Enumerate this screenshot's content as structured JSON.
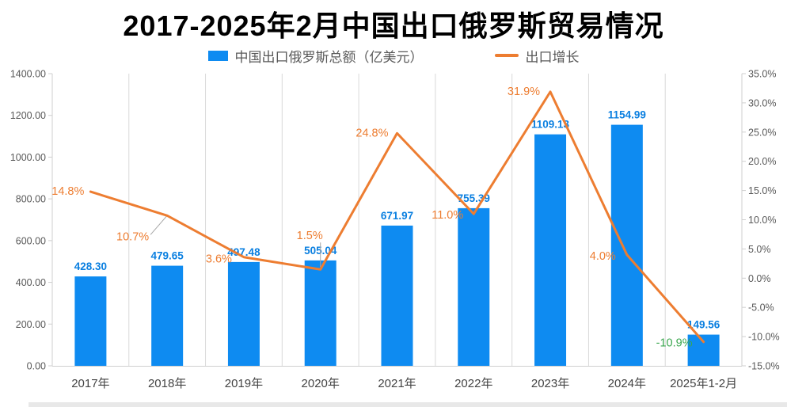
{
  "title": "2017-2025年2月中国出口俄罗斯贸易情况",
  "legend": {
    "bars_label": "中国出口俄罗斯总额（亿美元）",
    "line_label": "出口增长"
  },
  "colors": {
    "bar": "#0e8bf1",
    "bar_label": "#0a7fe0",
    "line": "#ed7d31",
    "line_label": "#ed7d31",
    "negative_label": "#3ba74f",
    "axis_text": "#595959",
    "x_axis_text": "#444444",
    "grid": "#d9d9d9",
    "axis_line": "#cfcfcf",
    "leader": "#a6a6a6"
  },
  "chart_data": {
    "type": "bar+line combo",
    "title": "2017-2025年2月中国出口俄罗斯贸易情况",
    "categories": [
      "2017年",
      "2018年",
      "2019年",
      "2020年",
      "2021年",
      "2022年",
      "2023年",
      "2024年",
      "2025年1-2月"
    ],
    "series": [
      {
        "name": "中国出口俄罗斯总额（亿美元）",
        "type": "bar",
        "axis": "left",
        "values": [
          428.3,
          479.65,
          497.48,
          505.04,
          671.97,
          755.39,
          1109.13,
          1154.99,
          149.56
        ],
        "labels": [
          "428.30",
          "479.65",
          "497.48",
          "505.04",
          "671.97",
          "755.39",
          "1109.13",
          "1154.99",
          "149.56"
        ]
      },
      {
        "name": "出口增长",
        "type": "line",
        "axis": "right",
        "values": [
          14.8,
          10.7,
          3.6,
          1.5,
          24.8,
          11.0,
          31.9,
          4.0,
          -10.9
        ],
        "labels": [
          "14.8%",
          "10.7%",
          "3.6%",
          "1.5%",
          "24.8%",
          "11.0%",
          "31.9%",
          "4.0%",
          "-10.9%"
        ]
      }
    ],
    "left_axis": {
      "min": 0,
      "max": 1400,
      "step": 200,
      "ticks": [
        "1400.00",
        "1200.00",
        "1000.00",
        "800.00",
        "600.00",
        "400.00",
        "200.00",
        "0.00"
      ]
    },
    "right_axis": {
      "min": -15,
      "max": 35,
      "step": 5,
      "ticks": [
        "35.0%",
        "30.0%",
        "25.0%",
        "20.0%",
        "15.0%",
        "10.0%",
        "5.0%",
        "0.0%",
        "-5.0%",
        "-10.0%",
        "-15.0%"
      ]
    },
    "grid": "vertical-only",
    "legend_position": "top-center"
  }
}
